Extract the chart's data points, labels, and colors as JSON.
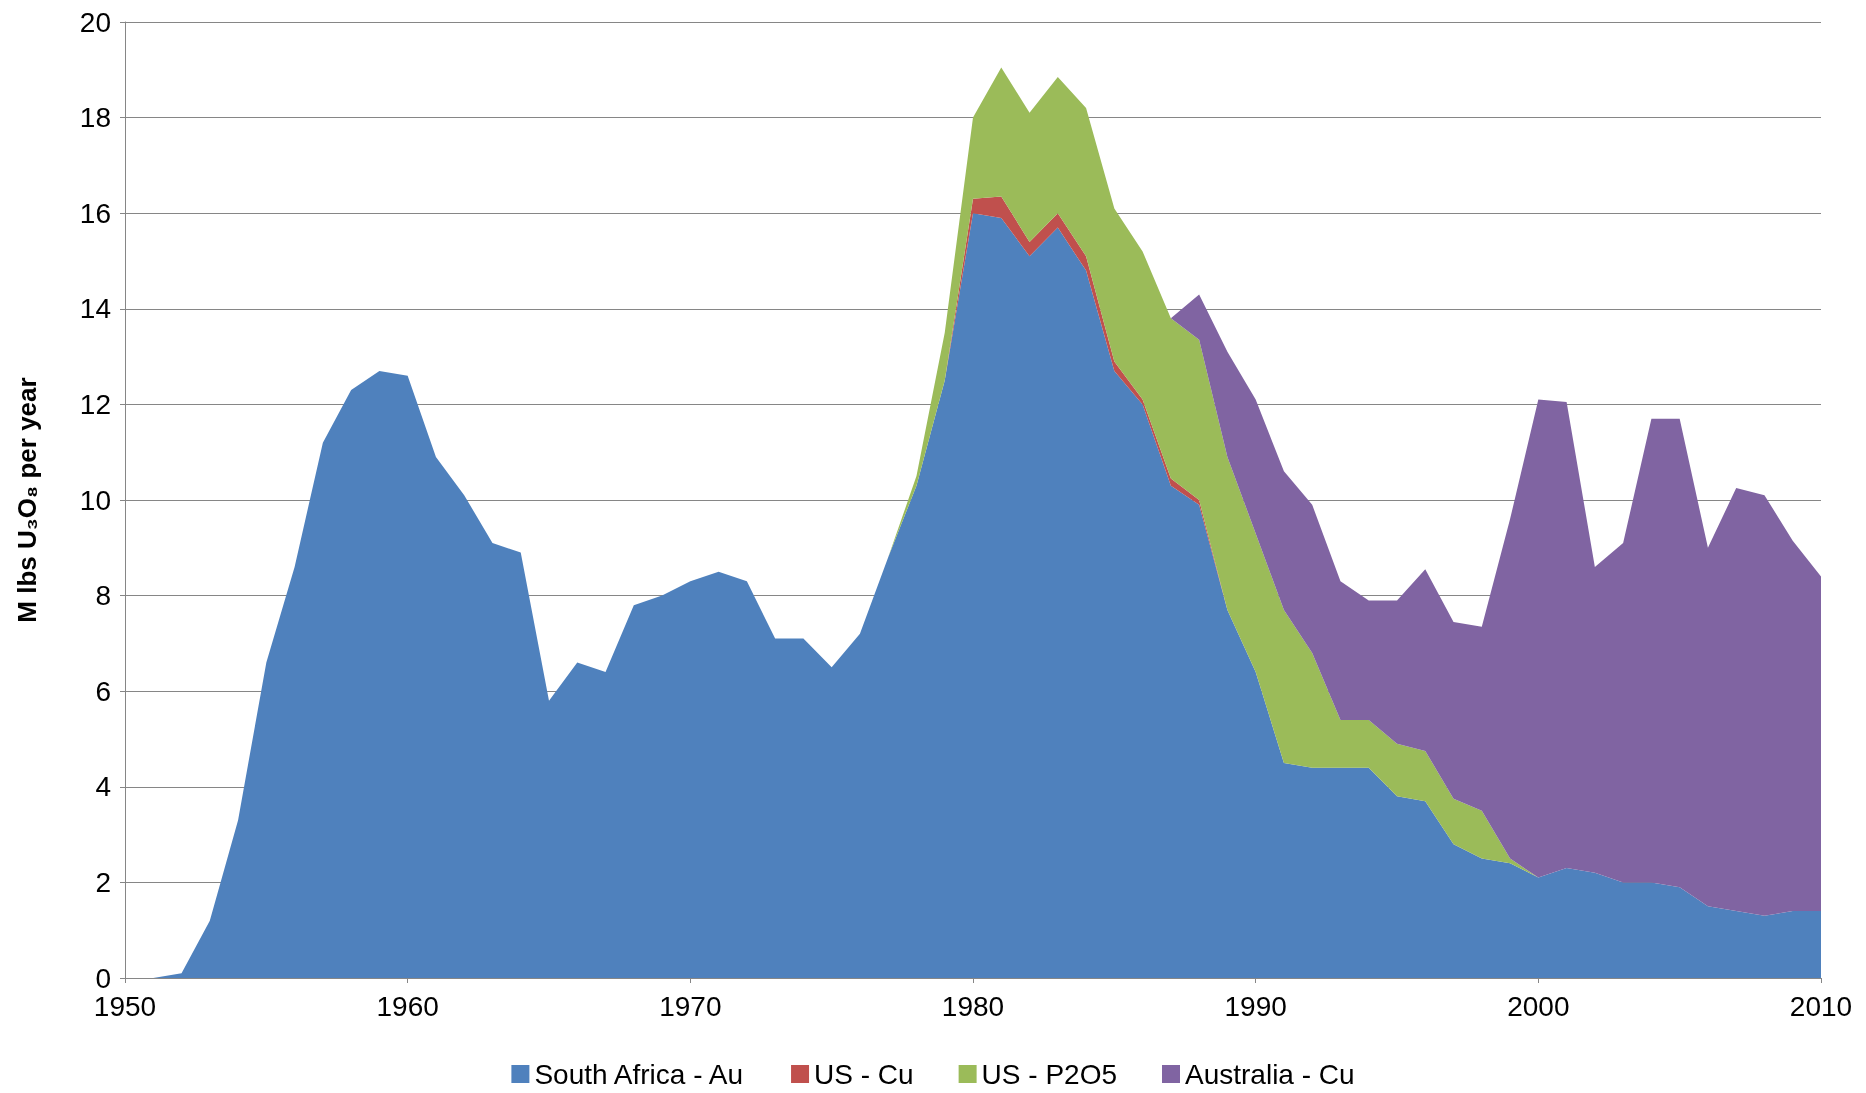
{
  "chart_data": {
    "type": "area",
    "stacked": true,
    "ylabel": "M lbs U₃O₈ per year",
    "x": [
      1951,
      1952,
      1953,
      1954,
      1955,
      1956,
      1957,
      1958,
      1959,
      1960,
      1961,
      1962,
      1963,
      1964,
      1965,
      1966,
      1967,
      1968,
      1969,
      1970,
      1971,
      1972,
      1973,
      1974,
      1975,
      1976,
      1977,
      1978,
      1979,
      1980,
      1981,
      1982,
      1983,
      1984,
      1985,
      1986,
      1987,
      1988,
      1989,
      1990,
      1991,
      1992,
      1993,
      1994,
      1995,
      1996,
      1997,
      1998,
      1999,
      2000,
      2001,
      2002,
      2003,
      2004,
      2005,
      2006,
      2007,
      2008,
      2009,
      2010
    ],
    "series": [
      {
        "name": "South Africa - Au",
        "color": "#4f81bd",
        "values": [
          0,
          0.1,
          1.2,
          3.3,
          6.6,
          8.6,
          11.2,
          12.3,
          12.7,
          12.6,
          10.9,
          10.1,
          9.1,
          8.9,
          5.8,
          6.6,
          6.4,
          7.8,
          8.0,
          8.3,
          8.5,
          8.3,
          7.1,
          7.1,
          6.5,
          7.2,
          8.8,
          10.3,
          12.5,
          16.0,
          15.9,
          15.1,
          15.7,
          14.8,
          12.7,
          12.0,
          10.3,
          9.9,
          7.7,
          6.4,
          4.5,
          4.4,
          4.4,
          4.4,
          3.8,
          3.7,
          2.8,
          2.5,
          2.4,
          2.1,
          2.3,
          2.2,
          2.0,
          2.0,
          1.9,
          1.5,
          1.4,
          1.3,
          1.4,
          1.4
        ]
      },
      {
        "name": "US - Cu",
        "color": "#c0504d",
        "values": [
          0,
          0,
          0,
          0,
          0,
          0,
          0,
          0,
          0,
          0,
          0,
          0,
          0,
          0,
          0,
          0,
          0,
          0,
          0,
          0,
          0,
          0,
          0,
          0,
          0,
          0,
          0,
          0,
          0,
          0.3,
          0.45,
          0.3,
          0.3,
          0.3,
          0.2,
          0.1,
          0.15,
          0.1,
          0,
          0,
          0,
          0,
          0,
          0,
          0,
          0,
          0,
          0,
          0,
          0,
          0,
          0,
          0,
          0,
          0,
          0,
          0,
          0,
          0,
          0
        ]
      },
      {
        "name": "US - P2O5",
        "color": "#9bbb59",
        "values": [
          0,
          0,
          0,
          0,
          0,
          0,
          0,
          0,
          0,
          0,
          0,
          0,
          0,
          0,
          0,
          0,
          0,
          0,
          0,
          0,
          0,
          0,
          0,
          0,
          0,
          0,
          0,
          0.2,
          1.0,
          1.7,
          2.7,
          2.7,
          2.85,
          3.1,
          3.2,
          3.1,
          3.35,
          3.35,
          3.2,
          2.9,
          3.2,
          2.4,
          1.0,
          1.0,
          1.1,
          1.05,
          0.95,
          1.0,
          0.1,
          0,
          0,
          0,
          0,
          0,
          0,
          0,
          0,
          0,
          0,
          0
        ]
      },
      {
        "name": "Australia - Cu",
        "color": "#8064a2",
        "values": [
          null,
          null,
          null,
          null,
          null,
          null,
          null,
          null,
          null,
          null,
          null,
          null,
          null,
          null,
          null,
          null,
          null,
          null,
          null,
          null,
          null,
          null,
          null,
          null,
          null,
          null,
          null,
          null,
          null,
          null,
          null,
          null,
          null,
          null,
          null,
          null,
          0,
          0.95,
          2.2,
          2.8,
          2.9,
          3.1,
          2.9,
          2.5,
          3.0,
          3.8,
          3.7,
          3.85,
          7.1,
          10.0,
          9.75,
          6.4,
          7.1,
          9.7,
          9.8,
          7.5,
          8.85,
          8.8,
          7.75,
          7.0
        ]
      }
    ],
    "xlim": [
      1950,
      2010
    ],
    "xticks": [
      1950,
      1960,
      1970,
      1980,
      1990,
      2000,
      2010
    ],
    "ylim": [
      0,
      20
    ],
    "yticks": [
      0,
      2,
      4,
      6,
      8,
      10,
      12,
      14,
      16,
      18,
      20
    ],
    "grid": "y",
    "legend": "bottom"
  }
}
